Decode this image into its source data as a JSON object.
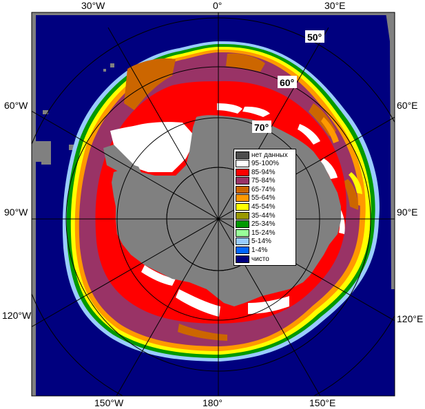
{
  "map": {
    "longitude_labels": {
      "w30": "30°W",
      "zero": "0°",
      "e30": "30°E",
      "w60": "60°W",
      "e60": "60°E",
      "w90": "90°W",
      "e90": "90°E",
      "w120": "120°W",
      "e120": "120°E",
      "w150": "150°W",
      "lon180": "180°",
      "e150": "150°E"
    },
    "latitude_labels": {
      "lat50": "50°",
      "lat60": "60°",
      "lat70": "70°"
    },
    "colors": {
      "ocean": "#00007f",
      "land": "#808080",
      "frame": "#808080"
    }
  },
  "legend": {
    "items": [
      {
        "label": "нет данных",
        "color": "#4d4d4d"
      },
      {
        "label": "95-100%",
        "color": "#ffffff"
      },
      {
        "label": "85-94%",
        "color": "#ff0000"
      },
      {
        "label": "75-84%",
        "color": "#993366"
      },
      {
        "label": "65-74%",
        "color": "#cc6600"
      },
      {
        "label": "55-64%",
        "color": "#ff9900"
      },
      {
        "label": "45-54%",
        "color": "#ffff00"
      },
      {
        "label": "35-44%",
        "color": "#999900"
      },
      {
        "label": "25-34%",
        "color": "#009900"
      },
      {
        "label": "15-24%",
        "color": "#99ff99"
      },
      {
        "label": "5-14%",
        "color": "#99ccff"
      },
      {
        "label": "1-4%",
        "color": "#0066ff"
      },
      {
        "label": "чисто",
        "color": "#000080"
      }
    ]
  }
}
